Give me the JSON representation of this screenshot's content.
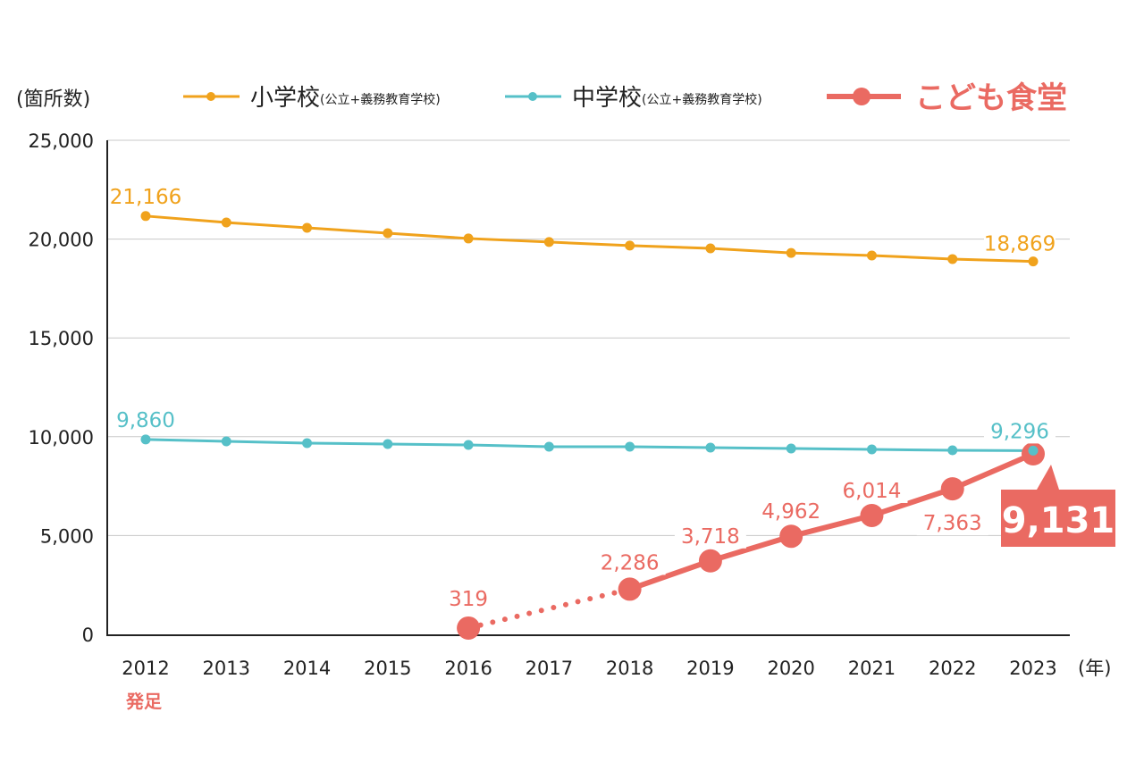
{
  "chart_data": {
    "type": "line",
    "ylabel": "(箇所数)",
    "xlabel": "(年)",
    "x_note": "発足",
    "ylim": [
      0,
      25000
    ],
    "yticks": [
      "0",
      "5,000",
      "10,000",
      "15,000",
      "20,000",
      "25,000"
    ],
    "ytick_values": [
      0,
      5000,
      10000,
      15000,
      20000,
      25000
    ],
    "grid": true,
    "legend_position": "top",
    "categories": [
      "2012",
      "2013",
      "2014",
      "2015",
      "2016",
      "2017",
      "2018",
      "2019",
      "2020",
      "2021",
      "2022",
      "2023"
    ],
    "series": [
      {
        "name": "小学校",
        "name_note": "(公立+義務教育学校)",
        "color": "#f0a21c",
        "values": [
          21166,
          20840,
          20570,
          20300,
          20030,
          19850,
          19670,
          19530,
          19300,
          19170,
          18990,
          18869
        ],
        "labels": {
          "0": "21,166",
          "11": "18,869"
        }
      },
      {
        "name": "中学校",
        "name_note": "(公立+義務教育学校)",
        "color": "#56c0c8",
        "values": [
          9860,
          9765,
          9674,
          9629,
          9584,
          9494,
          9494,
          9448,
          9403,
          9358,
          9313,
          9296
        ],
        "labels": {
          "0": "9,860",
          "11": "9,296"
        }
      },
      {
        "name": "こども食堂",
        "color": "#ea6a62",
        "values": [
          null,
          null,
          null,
          null,
          319,
          null,
          2286,
          3718,
          4962,
          6014,
          7363,
          9131
        ],
        "labels": {
          "4": "319",
          "6": "2,286",
          "7": "3,718",
          "8": "4,962",
          "9": "6,014",
          "10": "7,363",
          "11": "9,131"
        },
        "dotted_segment": [
          "2016",
          "2018"
        ]
      }
    ]
  }
}
